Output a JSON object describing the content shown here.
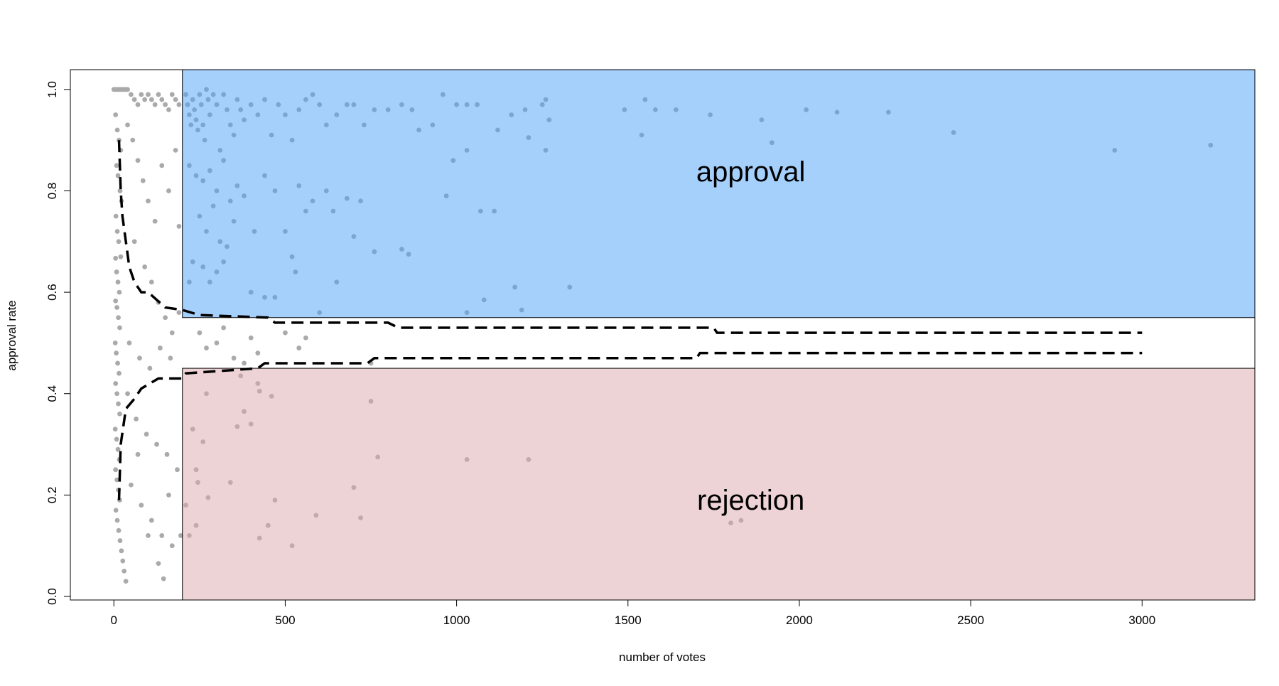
{
  "chart_data": {
    "type": "scatter",
    "x_label": "number of votes",
    "y_label": "approval rate",
    "xlim": [
      -127,
      3329
    ],
    "ylim": [
      -0.007,
      1.039
    ],
    "xticks": [
      0,
      500,
      1000,
      1500,
      2000,
      2500,
      3000
    ],
    "yticks": [
      {
        "value": 0,
        "label": "0.0"
      },
      0.2,
      0.4,
      0.6,
      0.8,
      {
        "value": 1,
        "label": "1.0"
      }
    ],
    "point_color": "#aaaaaa",
    "points": {
      "x": [
        210,
        215,
        220,
        225,
        230,
        235,
        240,
        245,
        250,
        255,
        260,
        265,
        270,
        275,
        280,
        290,
        300,
        310,
        320,
        330,
        340,
        350,
        360,
        370,
        380,
        400,
        420,
        440,
        460,
        480,
        500,
        520,
        540,
        560,
        580,
        600,
        620,
        650,
        680,
        700,
        730,
        760,
        800,
        840,
        870,
        890,
        930,
        960,
        1000,
        1030,
        1060,
        1120,
        1160,
        1200,
        1250,
        1260,
        1270,
        1490,
        1550,
        1580,
        1640,
        1740,
        1890,
        2020,
        2110,
        2260,
        2450,
        3200,
        1540,
        1920,
        2920,
        990,
        1030,
        1260,
        1210,
        220,
        240,
        260,
        280,
        300,
        320,
        340,
        360,
        380,
        250,
        270,
        290,
        310,
        330,
        350,
        410,
        440,
        470,
        500,
        540,
        560,
        580,
        620,
        640,
        680,
        720,
        700,
        760,
        840,
        860,
        970,
        1070,
        1110,
        230,
        260,
        300,
        320,
        400,
        440,
        470,
        530,
        520,
        650,
        1170,
        1330,
        1080,
        1190,
        1030,
        600,
        220,
        280,
        250,
        270,
        300,
        320,
        350,
        400,
        420,
        500,
        540,
        560,
        750,
        380,
        210,
        220,
        230,
        240,
        245,
        260,
        270,
        275,
        240,
        340,
        360,
        380,
        400,
        370,
        420,
        425,
        460,
        470,
        450,
        425,
        520,
        590,
        700,
        720,
        750,
        770,
        1030,
        1210,
        1800,
        1830,
        0,
        5,
        10,
        15,
        20,
        25,
        30,
        35,
        40,
        50,
        60,
        70,
        80,
        90,
        100,
        110,
        120,
        130,
        140,
        150,
        160,
        170,
        180,
        190,
        5,
        10,
        15,
        20,
        8,
        12,
        18,
        22,
        6,
        10,
        14,
        20,
        5,
        8,
        12,
        16,
        5,
        9,
        13,
        17,
        4,
        7,
        11,
        15,
        5,
        9,
        13,
        17,
        4,
        8,
        12,
        16,
        5,
        9,
        13,
        17,
        6,
        10,
        14,
        18,
        22,
        26,
        30,
        35,
        40,
        55,
        70,
        85,
        100,
        120,
        140,
        160,
        180,
        190,
        60,
        90,
        110,
        130,
        150,
        170,
        190,
        45,
        75,
        105,
        135,
        165,
        40,
        65,
        95,
        125,
        155,
        185,
        50,
        80,
        110,
        140,
        170,
        130,
        145,
        160,
        100,
        70,
        195
      ],
      "y": [
        0.99,
        0.97,
        0.95,
        0.93,
        0.98,
        0.96,
        0.94,
        0.92,
        0.99,
        0.97,
        0.93,
        0.9,
        1.0,
        0.98,
        0.95,
        0.99,
        0.97,
        0.88,
        0.99,
        0.96,
        0.93,
        0.91,
        0.98,
        0.96,
        0.94,
        0.97,
        0.95,
        0.98,
        0.91,
        0.97,
        0.95,
        0.9,
        0.96,
        0.98,
        0.99,
        0.97,
        0.93,
        0.95,
        0.97,
        0.97,
        0.93,
        0.96,
        0.96,
        0.97,
        0.96,
        0.92,
        0.93,
        0.99,
        0.97,
        0.97,
        0.97,
        0.92,
        0.95,
        0.96,
        0.97,
        0.98,
        0.94,
        0.96,
        0.98,
        0.96,
        0.96,
        0.95,
        0.94,
        0.96,
        0.955,
        0.955,
        0.915,
        0.89,
        0.91,
        0.895,
        0.88,
        0.86,
        0.88,
        0.88,
        0.905,
        0.85,
        0.83,
        0.82,
        0.84,
        0.8,
        0.86,
        0.78,
        0.81,
        0.79,
        0.75,
        0.72,
        0.77,
        0.7,
        0.69,
        0.74,
        0.72,
        0.83,
        0.8,
        0.72,
        0.81,
        0.76,
        0.78,
        0.8,
        0.76,
        0.785,
        0.78,
        0.71,
        0.68,
        0.685,
        0.675,
        0.79,
        0.76,
        0.76,
        0.66,
        0.65,
        0.64,
        0.66,
        0.6,
        0.59,
        0.59,
        0.64,
        0.67,
        0.62,
        0.61,
        0.61,
        0.585,
        0.565,
        0.56,
        0.56,
        0.62,
        0.62,
        0.52,
        0.49,
        0.5,
        0.53,
        0.47,
        0.51,
        0.48,
        0.52,
        0.49,
        0.51,
        0.46,
        0.46,
        0.18,
        0.12,
        0.33,
        0.25,
        0.225,
        0.305,
        0.4,
        0.195,
        0.14,
        0.225,
        0.335,
        0.365,
        0.34,
        0.435,
        0.42,
        0.405,
        0.395,
        0.19,
        0.14,
        0.115,
        0.1,
        0.16,
        0.215,
        0.155,
        0.385,
        0.275,
        0.27,
        0.27,
        0.145,
        0.15,
        1.0,
        1.0,
        1.0,
        1.0,
        1.0,
        1.0,
        1.0,
        1.0,
        1.0,
        0.99,
        0.98,
        0.97,
        0.99,
        0.98,
        0.99,
        0.98,
        0.97,
        0.99,
        0.98,
        0.97,
        0.96,
        0.99,
        0.98,
        0.97,
        0.95,
        0.92,
        0.9,
        0.88,
        0.85,
        0.83,
        0.8,
        0.78,
        0.75,
        0.72,
        0.7,
        0.67,
        0.667,
        0.64,
        0.62,
        0.6,
        0.583,
        0.57,
        0.55,
        0.53,
        0.5,
        0.48,
        0.46,
        0.44,
        0.42,
        0.4,
        0.38,
        0.36,
        0.33,
        0.31,
        0.29,
        0.27,
        0.25,
        0.23,
        0.21,
        0.19,
        0.17,
        0.15,
        0.13,
        0.11,
        0.09,
        0.07,
        0.05,
        0.03,
        0.93,
        0.9,
        0.86,
        0.82,
        0.78,
        0.74,
        0.85,
        0.8,
        0.88,
        0.73,
        0.7,
        0.65,
        0.62,
        0.58,
        0.55,
        0.52,
        0.56,
        0.5,
        0.47,
        0.45,
        0.49,
        0.47,
        0.4,
        0.35,
        0.32,
        0.3,
        0.28,
        0.25,
        0.22,
        0.18,
        0.15,
        0.12,
        0.1,
        0.065,
        0.035,
        0.2,
        0.12,
        0.28,
        0.12
      ]
    },
    "boundaries": [
      {
        "x": [
          15,
          20,
          25,
          35,
          45,
          60,
          80,
          100,
          150,
          200,
          250,
          450,
          470,
          800,
          830,
          1750,
          1760,
          3000
        ],
        "y": [
          0.9,
          0.8,
          0.75,
          0.7,
          0.65,
          0.62,
          0.6,
          0.6,
          0.57,
          0.565,
          0.555,
          0.55,
          0.54,
          0.54,
          0.53,
          0.53,
          0.52,
          0.52
        ]
      },
      {
        "x": [
          15,
          20,
          35,
          60,
          80,
          130,
          200,
          210,
          420,
          440,
          740,
          760,
          1700,
          1710,
          3000
        ],
        "y": [
          0.19,
          0.3,
          0.37,
          0.39,
          0.41,
          0.43,
          0.43,
          0.44,
          0.45,
          0.46,
          0.46,
          0.47,
          0.47,
          0.48,
          0.48
        ]
      }
    ],
    "regions": [
      {
        "label": "approval",
        "x_min": 200,
        "y_min": 0.55,
        "color": "rgba(75,161,249,0.5)"
      },
      {
        "label": "rejection",
        "x_min": 200,
        "y_max": 0.45,
        "color": "rgba(219,167,171,0.5)"
      }
    ]
  }
}
